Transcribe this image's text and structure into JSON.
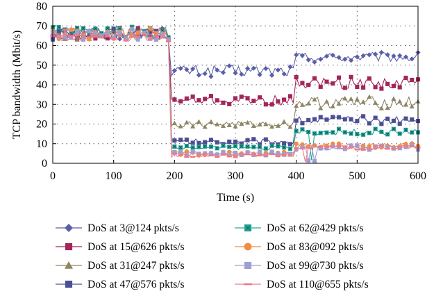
{
  "chart_data": {
    "type": "line",
    "xlabel": "Time (s)",
    "ylabel": "TCP bandwidth (Mbit/s)",
    "xlim": [
      0,
      600
    ],
    "ylim": [
      0,
      80
    ],
    "xticks": [
      "0",
      "100",
      "200",
      "300",
      "400",
      "500",
      "600"
    ],
    "yticks": [
      "0",
      "10",
      "20",
      "30",
      "40",
      "50",
      "60",
      "70",
      "80"
    ],
    "grid": "dotted",
    "legend_position": "bottom",
    "series": [
      {
        "name": "DoS at 3@124 pkts/s",
        "color": "#5a5fa8",
        "marker": "diamond",
        "levels": [
          66,
          47,
          54
        ],
        "amp": [
          3,
          3,
          2.5
        ]
      },
      {
        "name": "DoS at 15@626 pkts/s",
        "color": "#a3265a",
        "marker": "square",
        "levels": [
          66,
          32,
          41
        ],
        "amp": [
          3,
          2.5,
          3
        ]
      },
      {
        "name": "DoS at 31@247 pkts/s",
        "color": "#8f8565",
        "marker": "triangle",
        "levels": [
          66,
          20,
          31
        ],
        "amp": [
          3,
          1.5,
          3
        ]
      },
      {
        "name": "DoS at 47@576 pkts/s",
        "color": "#4d4f94",
        "marker": "square",
        "levels": [
          66,
          11,
          22
        ],
        "amp": [
          3,
          1.5,
          2
        ]
      },
      {
        "name": "DoS at 62@429 pkts/s",
        "color": "#26a699",
        "marker": "xsquare",
        "levels": [
          67,
          8,
          16
        ],
        "amp": [
          3,
          1,
          1.5
        ]
      },
      {
        "name": "DoS at 83@092 pkts/s",
        "color": "#f28c43",
        "marker": "circle",
        "levels": [
          66,
          5,
          9
        ],
        "amp": [
          3,
          1,
          1.2
        ]
      },
      {
        "name": "DoS at 99@730 pkts/s",
        "color": "#9f9ed1",
        "marker": "square",
        "levels": [
          66,
          5,
          8
        ],
        "amp": [
          3,
          1,
          1.2
        ]
      },
      {
        "name": "DoS at 110@655 pkts/s",
        "color": "#f07a84",
        "marker": "dash",
        "levels": [
          65,
          4,
          8
        ],
        "amp": [
          3,
          1,
          1.2
        ]
      }
    ]
  }
}
